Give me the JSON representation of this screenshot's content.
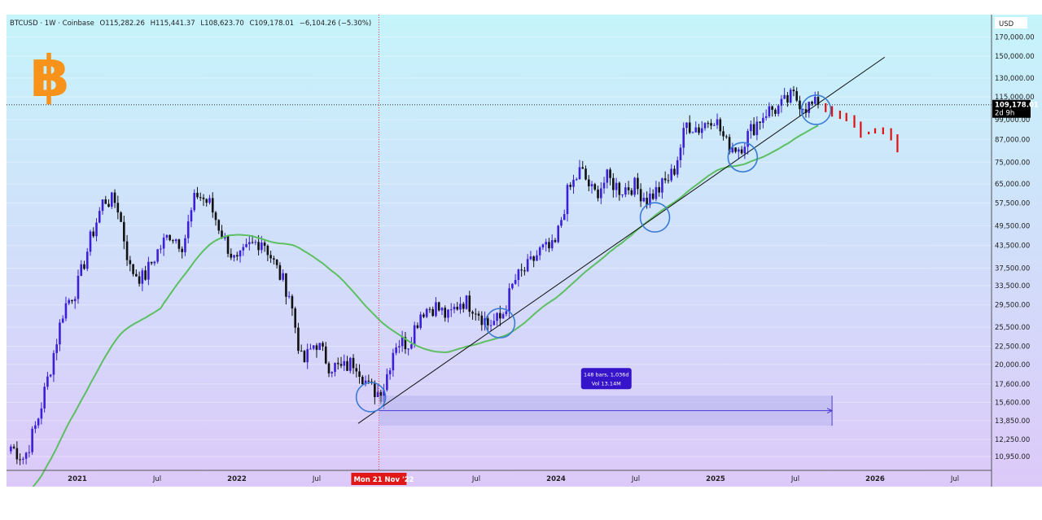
{
  "header": {
    "symbol": "BTCUSD · 1W · Coinbase",
    "open": "O115,282.26",
    "high": "H115,441.37",
    "low": "L108,623.70",
    "close": "C109,178.01",
    "change": "−6,104.26 (−5.30%)"
  },
  "price_axis": {
    "currency": "USD",
    "last_price": "109,178.01",
    "countdown": "2d 9h"
  },
  "crosshair": {
    "time_label": "Mon 21 Nov '22"
  },
  "measure": {
    "line1": "148 bars, 1,036d",
    "line2": "Vol 13.14M"
  },
  "colors": {
    "bg_top": "#c6f4fb",
    "bg_bottom": "#dcc9f9",
    "up": "#3d1fd6",
    "down": "#111111",
    "ma": "#5cbf62",
    "projection": "#e01010",
    "circle": "#3a7bd5",
    "crosshair": "#e03a3a",
    "measure_fill": "#b9b5ec",
    "measure_label": "#3514c9",
    "logo": "#f7931a"
  },
  "chart_data": {
    "type": "candlestick",
    "title": "BTCUSD · 1W · Coinbase",
    "scale": "log",
    "ylim": [
      10000,
      175000
    ],
    "y_ticks": [
      "170,000.00",
      "150,000.00",
      "130,000.00",
      "115,000.00",
      "99,000.00",
      "87,000.00",
      "75,000.00",
      "65,000.00",
      "57,500.00",
      "49,500.00",
      "43,500.00",
      "37,500.00",
      "33,500.00",
      "29,500.00",
      "25,500.00",
      "22,500.00",
      "20,000.00",
      "17,600.00",
      "15,600.00",
      "13,850.00",
      "12,250.00",
      "10,950.00"
    ],
    "y_tick_values": [
      170000,
      150000,
      130000,
      115000,
      99000,
      87000,
      75000,
      65000,
      57500,
      49500,
      43500,
      37500,
      33500,
      29500,
      25500,
      22500,
      20000,
      17600,
      15600,
      13850,
      12250,
      10950
    ],
    "x_ticks": [
      {
        "label": "2021",
        "t": 2021.0
      },
      {
        "label": "Jul",
        "t": 2021.5
      },
      {
        "label": "2022",
        "t": 2022.0
      },
      {
        "label": "Jul",
        "t": 2022.5
      },
      {
        "label": "Jul",
        "t": 2023.5
      },
      {
        "label": "2024",
        "t": 2024.0
      },
      {
        "label": "Jul",
        "t": 2024.5
      },
      {
        "label": "2025",
        "t": 2025.0
      },
      {
        "label": "Jul",
        "t": 2025.5
      },
      {
        "label": "2026",
        "t": 2026.0
      },
      {
        "label": "Jul",
        "t": 2026.5
      }
    ],
    "crosshair_t": 2022.89,
    "monthly_close_start": "2020-08",
    "monthly_closes": [
      11700,
      10800,
      13800,
      19700,
      29000,
      33100,
      45200,
      58800,
      57700,
      37300,
      35000,
      41500,
      47100,
      43800,
      61300,
      57000,
      46300,
      38500,
      43200,
      45500,
      37700,
      31800,
      19900,
      23300,
      20000,
      19400,
      20500,
      17200,
      16500,
      23100,
      23100,
      28500,
      29300,
      27200,
      30500,
      29200,
      26000,
      27000,
      34500,
      37700,
      42300,
      42600,
      61200,
      71300,
      60600,
      67500,
      62700,
      64600,
      59000,
      63300,
      70200,
      96400,
      93400,
      102400,
      84400,
      82500,
      94200,
      104600,
      107100,
      115700,
      108200,
      109178
    ],
    "moving_average": {
      "type": "SMA",
      "period_weeks": 50
    },
    "trendline": [
      [
        2022.76,
        13600
      ],
      [
        2026.06,
        149000
      ]
    ],
    "circles": [
      [
        2022.84,
        16150
      ],
      [
        2023.65,
        26200
      ],
      [
        2024.62,
        52300
      ],
      [
        2025.17,
        77500
      ],
      [
        2025.63,
        105600
      ]
    ],
    "projection": [
      [
        2025.69,
        104000
      ],
      [
        2025.73,
        101000
      ],
      [
        2025.78,
        99500
      ],
      [
        2025.82,
        98000
      ],
      [
        2025.87,
        94000
      ],
      [
        2025.91,
        88000
      ],
      [
        2025.96,
        90000
      ],
      [
        2026.0,
        90500
      ],
      [
        2026.05,
        90000
      ],
      [
        2026.1,
        86500
      ],
      [
        2026.14,
        80000
      ]
    ],
    "measure_range": {
      "t": [
        2022.89,
        2025.73
      ],
      "price": [
        13400,
        16300
      ]
    },
    "current_price": 109178.01
  }
}
